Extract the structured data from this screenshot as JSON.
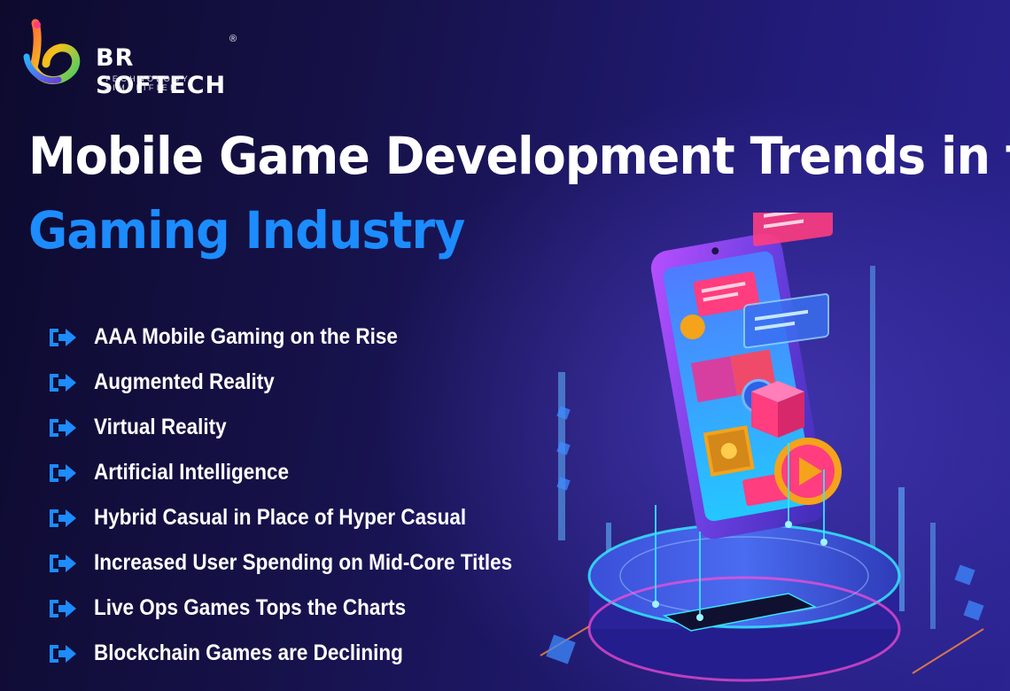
{
  "brand": {
    "name": "BR SOFTECH",
    "registered_mark": "®",
    "tagline": "TECHNOLOGY SIMPLIFIED",
    "logo_icon": "br-softech-logo-icon"
  },
  "headline": {
    "line1": "Mobile Game Development Trends in the",
    "line2": "Gaming Industry"
  },
  "trends": [
    {
      "label": "AAA Mobile Gaming on the Rise"
    },
    {
      "label": "Augmented Reality"
    },
    {
      "label": "Virtual Reality"
    },
    {
      "label": "Artificial Intelligence"
    },
    {
      "label": "Hybrid Casual in Place of Hyper Casual"
    },
    {
      "label": "Increased User Spending on Mid-Core Titles"
    },
    {
      "label": "Live Ops Games Tops the Charts"
    },
    {
      "label": "Blockchain Games are Declining"
    }
  ],
  "list_icon": "arrow-right-icon",
  "illustration_icon": "smartphone-gaming-hologram-illustration",
  "colors": {
    "background_dark": "#0d0a2e",
    "background_light": "#2a2390",
    "headline_white": "#ffffff",
    "headline_accent": "#1c8cff",
    "list_arrow": "#1c8cff"
  }
}
